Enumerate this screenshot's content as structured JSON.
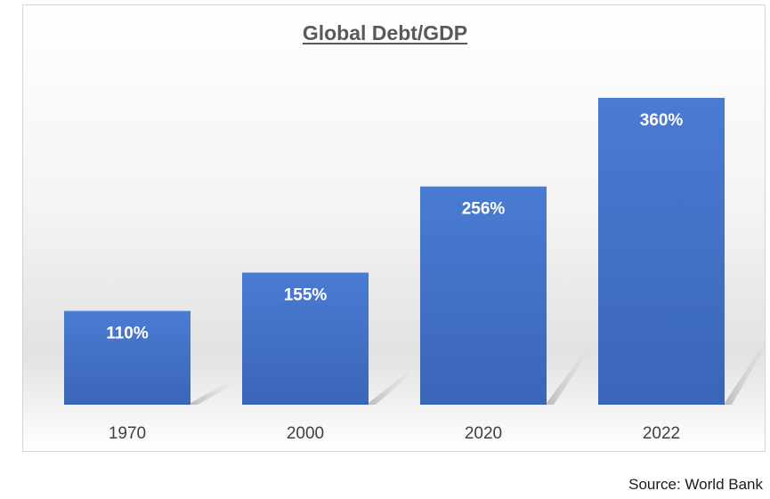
{
  "chart_data": {
    "type": "bar",
    "title": "Global Debt/GDP",
    "categories": [
      "1970",
      "2000",
      "2020",
      "2022"
    ],
    "values": [
      110,
      155,
      256,
      360
    ],
    "data_labels": [
      "110%",
      "155%",
      "256%",
      "360%"
    ],
    "unit": "%",
    "xlabel": "",
    "ylabel": "",
    "ylim": [
      0,
      360
    ],
    "grid": false,
    "legend": "none",
    "bar_color": "#4472c4"
  },
  "source": "Source: World Bank"
}
